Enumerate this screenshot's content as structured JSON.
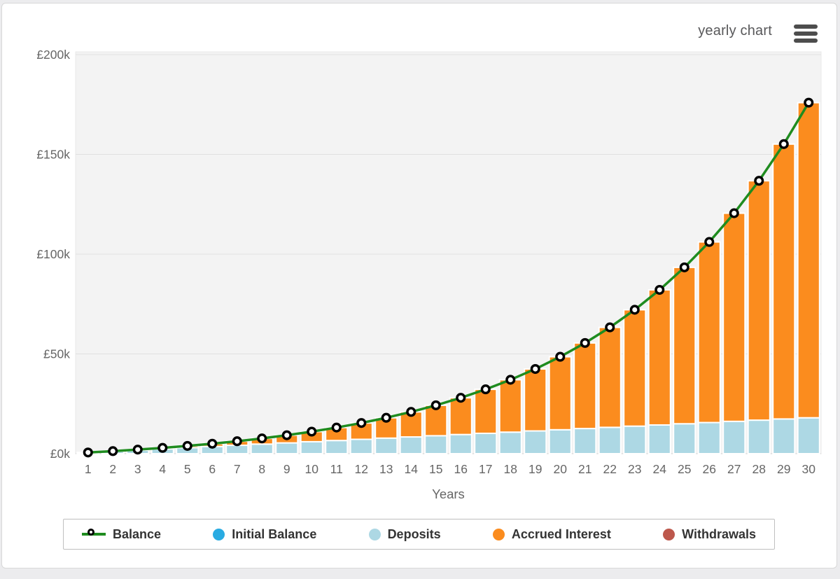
{
  "header": {
    "chart_type_label": "yearly chart",
    "menu_icon": "hamburger-menu-icon"
  },
  "chart_data": {
    "type": "bar",
    "subtype": "stacked-bars-with-line-overlay",
    "title": "",
    "xlabel": "Years",
    "ylabel": "",
    "x": [
      1,
      2,
      3,
      4,
      5,
      6,
      7,
      8,
      9,
      10,
      11,
      12,
      13,
      14,
      15,
      16,
      17,
      18,
      19,
      20,
      21,
      22,
      23,
      24,
      25,
      26,
      27,
      28,
      29,
      30
    ],
    "ylim": [
      0,
      200000
    ],
    "y_tick_values": [
      0,
      50000,
      100000,
      150000,
      200000
    ],
    "y_tick_labels": [
      "£0k",
      "£50k",
      "£100k",
      "£150k",
      "£200k"
    ],
    "grid": true,
    "legend_position": "bottom",
    "currency": "£",
    "series": [
      {
        "name": "Balance",
        "type": "line",
        "color": "#1f8c1f",
        "marker": "white-circle-black-ring",
        "values": [
          600,
          1278,
          2044,
          2910,
          3888,
          4994,
          6243,
          7654,
          9249,
          11052,
          13089,
          15390,
          17991,
          20930,
          24251,
          28003,
          32243,
          37035,
          42450,
          48568,
          55482,
          63295,
          72123,
          82099,
          93372,
          106110,
          120504,
          136770,
          155150,
          175920
        ]
      },
      {
        "name": "Initial Balance",
        "type": "bar-stack",
        "color": "#29abe2",
        "values": [
          0,
          0,
          0,
          0,
          0,
          0,
          0,
          0,
          0,
          0,
          0,
          0,
          0,
          0,
          0,
          0,
          0,
          0,
          0,
          0,
          0,
          0,
          0,
          0,
          0,
          0,
          0,
          0,
          0,
          0
        ]
      },
      {
        "name": "Deposits",
        "type": "bar-stack",
        "color": "#add8e4",
        "values": [
          600,
          1200,
          1800,
          2400,
          3000,
          3600,
          4200,
          4800,
          5400,
          6000,
          6600,
          7200,
          7800,
          8400,
          9000,
          9600,
          10200,
          10800,
          11400,
          12000,
          12600,
          13200,
          13800,
          14400,
          15000,
          15600,
          16200,
          16800,
          17400,
          18000
        ]
      },
      {
        "name": "Accrued Interest",
        "type": "bar-stack",
        "color": "#fb8c1e",
        "values": [
          0,
          78,
          244,
          510,
          888,
          1394,
          2043,
          2854,
          3849,
          5052,
          6489,
          8190,
          10191,
          12530,
          15251,
          18403,
          22043,
          26235,
          31050,
          36568,
          42882,
          50095,
          58323,
          67699,
          78372,
          90510,
          104304,
          119970,
          137750,
          157920
        ]
      },
      {
        "name": "Withdrawals",
        "type": "bar-stack",
        "color": "#bd584c",
        "values": [
          0,
          0,
          0,
          0,
          0,
          0,
          0,
          0,
          0,
          0,
          0,
          0,
          0,
          0,
          0,
          0,
          0,
          0,
          0,
          0,
          0,
          0,
          0,
          0,
          0,
          0,
          0,
          0,
          0,
          0
        ]
      }
    ],
    "colors": {
      "plot_background": "#f3f3f3",
      "gridline": "#e0e0e0",
      "axis_text": "#666666",
      "bar_separator": "#ffffff"
    }
  },
  "legend": {
    "items": [
      {
        "label": "Balance",
        "swatch": "line-marker",
        "color": "#1f8c1f"
      },
      {
        "label": "Initial Balance",
        "swatch": "dot",
        "color": "#29abe2"
      },
      {
        "label": "Deposits",
        "swatch": "dot",
        "color": "#add8e4"
      },
      {
        "label": "Accrued Interest",
        "swatch": "dot",
        "color": "#fb8c1e"
      },
      {
        "label": "Withdrawals",
        "swatch": "dot",
        "color": "#bd584c"
      }
    ]
  }
}
